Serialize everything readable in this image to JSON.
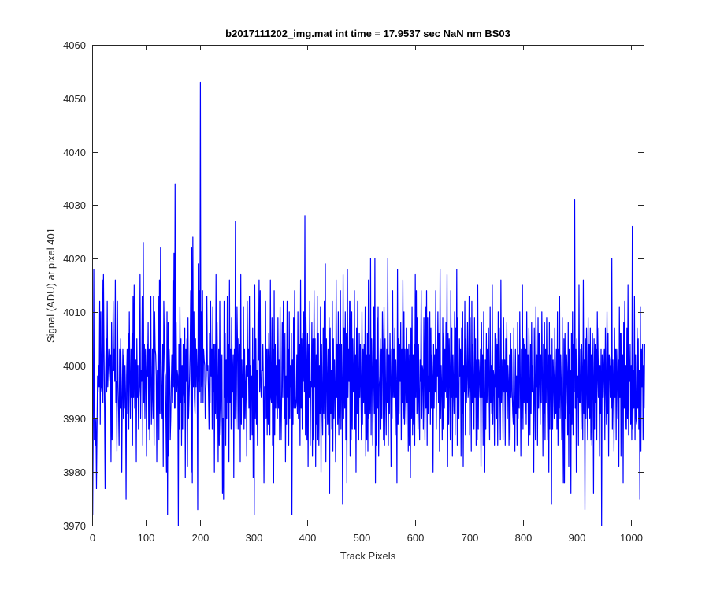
{
  "chart_data": {
    "type": "line",
    "title": "b2017111202_img.mat int time = 17.9537 sec  NaN nm BS03",
    "xlabel": "Track Pixels",
    "ylabel": "Signal (ADU) at pixel 401",
    "xlim": [
      0,
      1024
    ],
    "ylim": [
      3970,
      4060
    ],
    "xticks": [
      "0",
      "100",
      "200",
      "300",
      "400",
      "500",
      "600",
      "700",
      "800",
      "900",
      "1000"
    ],
    "yticks": [
      "3970",
      "3980",
      "3990",
      "4000",
      "4010",
      "4020",
      "4030",
      "4040",
      "4050",
      "4060"
    ],
    "grid": false,
    "series_color": "#0000ff",
    "axis_color": "#262626",
    "series": [
      {
        "x_start": 1,
        "x_step": 1,
        "values": [
          3972,
          3990,
          4018,
          3986,
          3990,
          3985,
          3990,
          3977,
          3988,
          3998,
          3995,
          4000,
          3996,
          4012,
          3989,
          4010,
          3996,
          3995,
          4016,
          3993,
          4017,
          4003,
          3992,
          3977,
          3998,
          4005,
          3995,
          4012,
          3996,
          4000,
          4003,
          3999,
          3997,
          4002,
          3982,
          4008,
          3986,
          3996,
          4012,
          3999,
          4003,
          3997,
          4016,
          3993,
          3997,
          3984,
          4012,
          3997,
          3992,
          3985,
          4003,
          3992,
          4005,
          3997,
          3980,
          3995,
          4003,
          3990,
          4002,
          3992,
          4000,
          3995,
          3975,
          3998,
          4003,
          3991,
          4006,
          3988,
          4010,
          3998,
          3990,
          4003,
          3994,
          4006,
          3985,
          4013,
          3994,
          4015,
          3992,
          3996,
          4001,
          3982,
          4005,
          3994,
          4000,
          3988,
          3994,
          3996,
          4017,
          3990,
          3999,
          3997,
          4013,
          3985,
          4023,
          3993,
          4004,
          3990,
          4003,
          3999,
          3983,
          4004,
          3998,
          4008,
          3988,
          4003,
          3986,
          3997,
          4013,
          3989,
          3994,
          4003,
          3990,
          4013,
          3985,
          4010,
          4003,
          4002,
          3998,
          3982,
          3999,
          3999,
          4013,
          3986,
          4016,
          3991,
          4022,
          4001,
          3994,
          3990,
          4004,
          3981,
          4012,
          4005,
          3999,
          3998,
          3990,
          3980,
          4010,
          3972,
          4008,
          3983,
          4003,
          3999,
          3986,
          3990,
          3997,
          4002,
          3993,
          4016,
          3996,
          4021,
          3992,
          4034,
          3992,
          4008,
          3995,
          3999,
          3998,
          3970,
          4004,
          3988,
          4011,
          3993,
          4005,
          3985,
          4000,
          3988,
          4004,
          3995,
          3993,
          4007,
          3979,
          4003,
          3997,
          4005,
          3981,
          4009,
          3990,
          3994,
          3998,
          4003,
          4014,
          3980,
          4022,
          3978,
          4024,
          3996,
          4010,
          3994,
          3991,
          4005,
          3996,
          4003,
          3999,
          3973,
          4019,
          3997,
          4014,
          3995,
          4053,
          3993,
          4010,
          3996,
          4014,
          3993,
          4003,
          4001,
          4000,
          3990,
          3995,
          3998,
          4013,
          3999,
          4000,
          3995,
          3988,
          4006,
          3993,
          4012,
          3998,
          4003,
          3988,
          4011,
          3995,
          4004,
          3980,
          4004,
          3991,
          4017,
          3990,
          4008,
          3998,
          3982,
          4003,
          3985,
          4012,
          3992,
          3987,
          3998,
          4002,
          3976,
          3990,
          3975,
          4012,
          3994,
          4006,
          3985,
          4001,
          3990,
          4013,
          3993,
          4004,
          3982,
          4016,
          3993,
          4003,
          3988,
          4009,
          4000,
          3995,
          4002,
          3979,
          4003,
          3990,
          4027,
          3988,
          3995,
          4011,
          4003,
          3988,
          4005,
          3996,
          4004,
          3982,
          4017,
          3989,
          4001,
          3994,
          3996,
          4011,
          3988,
          4003,
          3990,
          3996,
          4000,
          3983,
          4012,
          3998,
          4003,
          3992,
          4013,
          3986,
          4000,
          3994,
          3998,
          3987,
          4007,
          3979,
          4001,
          3972,
          4015,
          3990,
          4005,
          3989,
          3999,
          3985,
          4010,
          4001,
          4016,
          3995,
          4014,
          3996,
          3994,
          3999,
          3999,
          4004,
          3995,
          3978,
          3996,
          3996,
          4012,
          3990,
          4003,
          3987,
          4003,
          3989,
          4006,
          4000,
          3987,
          4016,
          3994,
          3993,
          4009,
          3985,
          4003,
          3978,
          4014,
          3987,
          4004,
          3992,
          4000,
          3995,
          3990,
          4009,
          3992,
          4001,
          3986,
          4011,
          3994,
          3986,
          3995,
          4008,
          3994,
          4012,
          4000,
          3990,
          4006,
          3982,
          3998,
          3989,
          4012,
          3994,
          4003,
          3985,
          4010,
          3990,
          4000,
          3996,
          4006,
          3972,
          4001,
          3989,
          4009,
          3992,
          4014,
          3994,
          3992,
          3993,
          4002,
          3991,
          4010,
          3990,
          3995,
          4004,
          3985,
          4016,
          3992,
          4005,
          3988,
          4006,
          3997,
          4010,
          3995,
          4028,
          3987,
          4009,
          4001,
          3986,
          4006,
          3981,
          4004,
          3994,
          4012,
          3985,
          3997,
          3996,
          4008,
          3983,
          4005,
          3986,
          4014,
          3996,
          4005,
          3981,
          4002,
          3989,
          4013,
          3986,
          4006,
          3985,
          4000,
          3991,
          4011,
          3980,
          4004,
          3994,
          3987,
          4007,
          3991,
          4012,
          3990,
          4019,
          3982,
          4005,
          3998,
          3989,
          4003,
          3987,
          4009,
          3976,
          4007,
          3991,
          3999,
          3988,
          4012,
          3984,
          4005,
          3990,
          4001,
          3995,
          3982,
          4016,
          3994,
          4004,
          3989,
          4010,
          3987,
          4004,
          3990,
          4014,
          3988,
          4004,
          3996,
          3974,
          4017,
          3990,
          4007,
          3992,
          4010,
          3986,
          4006,
          3978,
          4018,
          3994,
          4003,
          3997,
          4012,
          3983,
          4012,
          3986,
          4010,
          3988,
          4005,
          3995,
          3996,
          4014,
          3988,
          4002,
          3980,
          4007,
          3991,
          4012,
          3998,
          3986,
          4006,
          3994,
          4004,
          3996,
          3986,
          4010,
          3989,
          4003,
          3993,
          4004,
          3991,
          4011,
          3983,
          4002,
          3986,
          4006,
          3984,
          4016,
          3990,
          4002,
          3991,
          4020,
          3987,
          4005,
          3999,
          3985,
          3996,
          4011,
          3991,
          4020,
          3978,
          4001,
          3985,
          4009,
          3992,
          4011,
          3983,
          3996,
          3998,
          4005,
          3988,
          4003,
          3990,
          4010,
          4002,
          3986,
          4011,
          3985,
          4005,
          3995,
          3987,
          4003,
          3993,
          4020,
          3985,
          4002,
          3991,
          4006,
          3998,
          3981,
          4003,
          3990,
          4014,
          3994,
          4003,
          3994,
          4007,
          3987,
          4001,
          3996,
          3978,
          4018,
          3989,
          4005,
          3991,
          4004,
          3997,
          4008,
          3986,
          4003,
          3993,
          4016,
          3990,
          4010,
          3989,
          4003,
          3996,
          3989,
          4007,
          3993,
          4003,
          3984,
          4004,
          3985,
          4002,
          3979,
          4007,
          3990,
          4011,
          3987,
          4002,
          3989,
          4004,
          3985,
          4017,
          3994,
          4014,
          3991,
          4009,
          3988,
          4004,
          3994,
          3986,
          4001,
          3997,
          4014,
          3990,
          4000,
          3999,
          3988,
          4009,
          3998,
          3986,
          4011,
          3992,
          4014,
          3985,
          4009,
          3991,
          3998,
          3995,
          4010,
          3989,
          4007,
          3992,
          4002,
          3998,
          3980,
          4004,
          3992,
          4002,
          3995,
          4014,
          3988,
          4003,
          3998,
          4010,
          3993,
          4006,
          3984,
          4018,
          3990,
          4000,
          3996,
          3986,
          4009,
          3988,
          4006,
          3992,
          4003,
          3995,
          4008,
          3994,
          4017,
          3981,
          4006,
          3989,
          4005,
          3998,
          3986,
          4014,
          3994,
          4007,
          3983,
          4002,
          3996,
          3991,
          4010,
          3987,
          4007,
          3994,
          4018,
          3985,
          4009,
          3991,
          3990,
          4005,
          3998,
          4003,
          3983,
          4007,
          3991,
          4010,
          3981,
          4000,
          3995,
          4012,
          3987,
          4005,
          3993,
          3998,
          4008,
          3994,
          3996,
          4013,
          3987,
          4009,
          3997,
          3984,
          4012,
          3993,
          4004,
          3996,
          3988,
          4009,
          3994,
          4005,
          3985,
          4001,
          3986,
          4015,
          3988,
          4001,
          3998,
          3994,
          4003,
          3981,
          4008,
          3994,
          4002,
          3985,
          4010,
          3994,
          3980,
          4001,
          3988,
          4006,
          3993,
          4003,
          3993,
          4007,
          3996,
          3986,
          4011,
          3993,
          4000,
          3991,
          4015,
          3989,
          3999,
          3998,
          3985,
          4006,
          3996,
          4005,
          3990,
          4004,
          3985,
          4010,
          3994,
          4007,
          3996,
          3986,
          4016,
          3993,
          4001,
          3996,
          3986,
          4009,
          3995,
          4001,
          3985,
          4005,
          3995,
          4008,
          3990,
          4000,
          3997,
          3985,
          4002,
          3986,
          4006,
          3994,
          4003,
          3995,
          3991,
          3989,
          4007,
          3990,
          3984,
          4003,
          3991,
          3998,
          3985,
          4008,
          3990,
          4002,
          3992,
          4010,
          3997,
          3983,
          4003,
          3990,
          4015,
          3988,
          4005,
          3993,
          4004,
          3991,
          4003,
          3989,
          4010,
          3993,
          4002,
          3985,
          4007,
          3996,
          3987,
          4004,
          3991,
          4008,
          3995,
          4000,
          3994,
          3980,
          4007,
          3995,
          3986,
          4011,
          3996,
          4002,
          3985,
          4009,
          3992,
          4006,
          3997,
          3989,
          4002,
          3993,
          4010,
          3998,
          3983,
          4004,
          3991,
          4008,
          3986,
          4003,
          3993,
          4009,
          3995,
          3986,
          4002,
          3980,
          4008,
          3988,
          4002,
          3998,
          3974,
          4005,
          3988,
          4001,
          3997,
          3990,
          4007,
          3995,
          3991,
          4003,
          3988,
          4010,
          3985,
          4003,
          3992,
          4013,
          3990,
          4002,
          3996,
          3986,
          4009,
          3991,
          3978,
          4005,
          3978,
          4006,
          3990,
          3993,
          4002,
          3998,
          3987,
          4008,
          3981,
          4003,
          3991,
          3999,
          3976,
          4006,
          3989,
          4010,
          3987,
          4004,
          3995,
          4031,
          3992,
          4003,
          3980,
          4005,
          3994,
          3998,
          3985,
          4015,
          3993,
          3993,
          4003,
          3988,
          4004,
          3998,
          3986,
          4016,
          3991,
          4001,
          3973,
          4005,
          3990,
          4007,
          3995,
          3986,
          4009,
          3992,
          4004,
          3990,
          4007,
          3986,
          4002,
          3985,
          4006,
          3998,
          3976,
          4005,
          3988,
          4004,
          3993,
          4003,
          3986,
          4010,
          3998,
          3994,
          4007,
          3983,
          4000,
          3991,
          4003,
          3970,
          4002,
          3994,
          3994,
          3999,
          4003,
          3986,
          4007,
          3996,
          3989,
          4010,
          3991,
          4006,
          3983,
          4002,
          4001,
          3994,
          4000,
          3992,
          4020,
          3988,
          4001,
          3996,
          3984,
          4007,
          3994,
          4003,
          3986,
          4003,
          3998,
          3990,
          4001,
          3981,
          4011,
          3994,
          4006,
          3983,
          4006,
          3995,
          4002,
          3978,
          4008,
          3992,
          4012,
          3988,
          4000,
          3988,
          4007,
          3990,
          4015,
          3987,
          3999,
          3997,
          4004,
          3989,
          4000,
          3986,
          4026,
          3988,
          3999,
          3992,
          4013,
          3986,
          4002,
          3990,
          3989,
          4007,
          3992,
          4005,
          3988,
          3999,
          3975,
          4011,
          3984,
          4003,
          3996,
          4004,
          3986,
          4000,
          3992,
          4004
        ]
      }
    ]
  }
}
